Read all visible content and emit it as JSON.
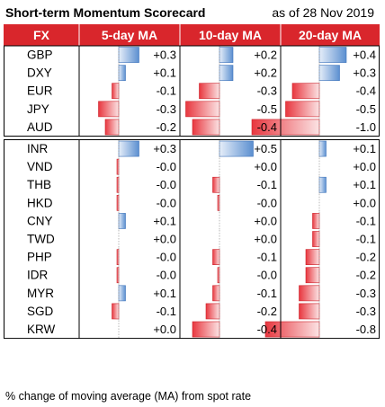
{
  "title": "Short-term Momentum Scorecard",
  "as_of": "as of 28 Nov 2019",
  "footnote": "% change of moving average (MA) from spot rate",
  "colors": {
    "header_bg": "#d9262c",
    "header_text": "#ffffff",
    "positive_bar": "#5b8fd0",
    "negative_bar": "#e8373f",
    "grid": "#000000"
  },
  "chart_data": {
    "type": "table",
    "columns": [
      "FX",
      "5-day MA",
      "10-day MA",
      "20-day MA"
    ],
    "groups": [
      {
        "rows": [
          {
            "fx": "GBP",
            "values": [
              0.3,
              0.2,
              0.4
            ],
            "labels": [
              "+0.3",
              "+0.2",
              "+0.4"
            ]
          },
          {
            "fx": "DXY",
            "values": [
              0.1,
              0.2,
              0.3
            ],
            "labels": [
              "+0.1",
              "+0.2",
              "+0.3"
            ]
          },
          {
            "fx": "EUR",
            "values": [
              -0.1,
              -0.3,
              -0.4
            ],
            "labels": [
              "-0.1",
              "-0.3",
              "-0.4"
            ]
          },
          {
            "fx": "JPY",
            "values": [
              -0.3,
              -0.5,
              -0.5
            ],
            "labels": [
              "-0.3",
              "-0.5",
              "-0.5"
            ]
          },
          {
            "fx": "AUD",
            "values": [
              -0.2,
              -0.4,
              -1.0
            ],
            "labels": [
              "-0.2",
              "-0.4",
              "-1.0"
            ]
          }
        ]
      },
      {
        "rows": [
          {
            "fx": "INR",
            "values": [
              0.3,
              0.5,
              0.1
            ],
            "labels": [
              "+0.3",
              "+0.5",
              "+0.1"
            ]
          },
          {
            "fx": "VND",
            "values": [
              -0.02,
              0.0,
              0.0
            ],
            "labels": [
              "-0.0",
              "+0.0",
              "+0.0"
            ]
          },
          {
            "fx": "THB",
            "values": [
              -0.02,
              -0.1,
              0.1
            ],
            "labels": [
              "-0.0",
              "-0.1",
              "+0.1"
            ]
          },
          {
            "fx": "HKD",
            "values": [
              -0.02,
              -0.02,
              0.0
            ],
            "labels": [
              "-0.0",
              "-0.0",
              "+0.0"
            ]
          },
          {
            "fx": "CNY",
            "values": [
              0.1,
              0.0,
              -0.1
            ],
            "labels": [
              "+0.1",
              "+0.0",
              "-0.1"
            ]
          },
          {
            "fx": "TWD",
            "values": [
              0.0,
              0.0,
              -0.1
            ],
            "labels": [
              "+0.0",
              "+0.0",
              "-0.1"
            ]
          },
          {
            "fx": "PHP",
            "values": [
              -0.02,
              -0.1,
              -0.2
            ],
            "labels": [
              "-0.0",
              "-0.1",
              "-0.2"
            ]
          },
          {
            "fx": "IDR",
            "values": [
              -0.02,
              -0.02,
              -0.2
            ],
            "labels": [
              "-0.0",
              "-0.0",
              "-0.2"
            ]
          },
          {
            "fx": "MYR",
            "values": [
              0.1,
              -0.1,
              -0.3
            ],
            "labels": [
              "+0.1",
              "-0.1",
              "-0.3"
            ]
          },
          {
            "fx": "SGD",
            "values": [
              -0.1,
              -0.2,
              -0.3
            ],
            "labels": [
              "-0.1",
              "-0.2",
              "-0.3"
            ]
          },
          {
            "fx": "KRW",
            "values": [
              0.0,
              -0.4,
              -0.8
            ],
            "labels": [
              "+0.0",
              "-0.4",
              "-0.8"
            ]
          }
        ]
      }
    ],
    "bar_scale": [
      -1.0,
      1.0
    ]
  }
}
